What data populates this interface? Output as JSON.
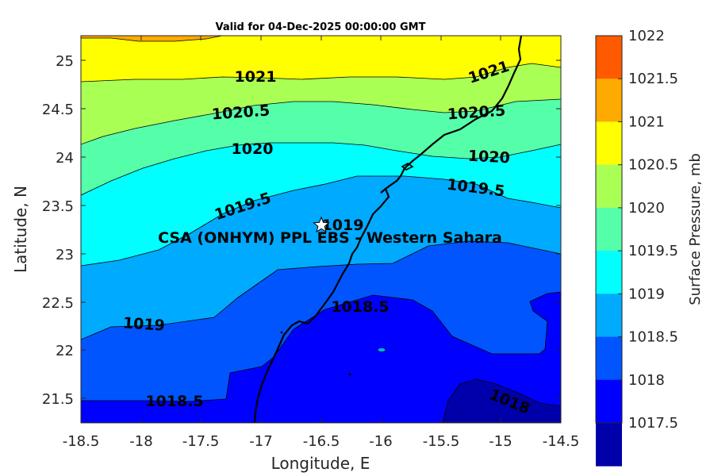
{
  "title": "Valid for 04-Dec-2025 00:00:00 GMT",
  "xaxis": {
    "label": "Longitude, E",
    "ticks": [
      "-18.5",
      "-18",
      "-17.5",
      "-17",
      "-16.5",
      "-16",
      "-15.5",
      "-15",
      "-14.5"
    ]
  },
  "yaxis": {
    "label": "Latitude, N",
    "ticks": [
      "25",
      "24.5",
      "24",
      "23.5",
      "23",
      "22.5",
      "22",
      "21.5"
    ]
  },
  "colorbar": {
    "label": "Surface Pressure, mb",
    "ticks": [
      "1022",
      "1021.5",
      "1021",
      "1020.5",
      "1020",
      "1019.5",
      "1019",
      "1018.5",
      "1018",
      "1017.5"
    ],
    "colors": [
      "#ff5a00",
      "#ffaa00",
      "#ffff00",
      "#aaff55",
      "#55ffaa",
      "#00ffff",
      "#00aaff",
      "#0055ff",
      "#0000ff",
      "#0000aa"
    ]
  },
  "contour_labels": [
    "1021",
    "1021",
    "1020.5",
    "1020.5",
    "1020",
    "1020",
    "1019.5",
    "1019.5",
    "1019",
    "1019",
    "1018.5",
    "1018.5",
    "1018"
  ],
  "site": {
    "name": "CSA (ONHYM) PPL EBS - Western Sahara",
    "marker": "star-icon"
  }
}
